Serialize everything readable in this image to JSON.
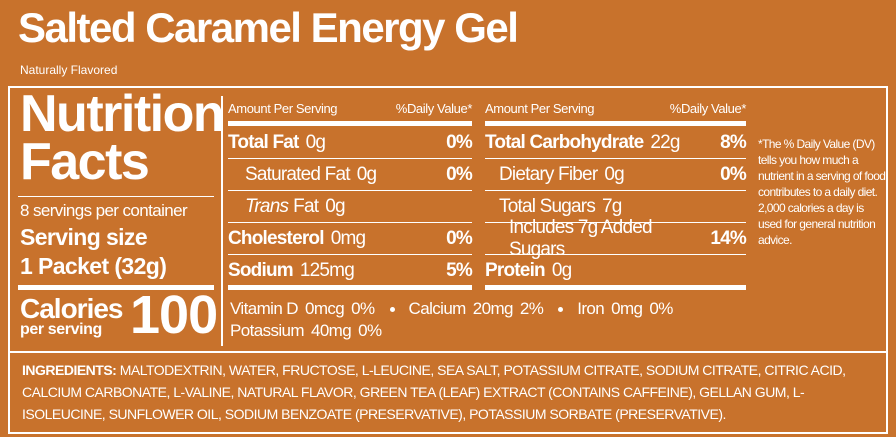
{
  "header": {
    "title": "Salted Caramel Energy Gel",
    "subtitle": "Naturally Flavored"
  },
  "facts": {
    "heading_1": "Nutrition",
    "heading_2": "Facts",
    "servings": "8 servings per container",
    "serving_size_label": "Serving size",
    "serving_size": "1 Packet (32g)",
    "calories_label": "Calories",
    "calories_sub": "per serving",
    "calories": "100"
  },
  "left_table": {
    "amount_header": "Amount Per Serving",
    "dv_header": "%Daily Value*",
    "rows": [
      {
        "name": "Total Fat",
        "amount": "0g",
        "dv": "0%"
      },
      {
        "name": "Saturated Fat",
        "amount": "0g",
        "dv": "0%"
      },
      {
        "italic": "Trans",
        "name": "Fat",
        "amount": "0g"
      },
      {
        "name": "Cholesterol",
        "amount": "0mg",
        "dv": "0%"
      },
      {
        "name": "Sodium",
        "amount": "125mg",
        "dv": "5%"
      }
    ]
  },
  "right_table": {
    "amount_header": "Amount Per Serving",
    "dv_header": "%Daily Value*",
    "rows": [
      {
        "name": "Total Carbohydrate",
        "amount": "22g",
        "dv": "8%"
      },
      {
        "name": "Dietary Fiber",
        "amount": "0g",
        "dv": "0%"
      },
      {
        "name": "Total Sugars",
        "amount": "7g"
      },
      {
        "name": "Includes 7g Added Sugars",
        "dv": "14%"
      },
      {
        "name": "Protein",
        "amount": "0g"
      }
    ]
  },
  "vitamins": [
    [
      [
        "Vitamin D",
        "0mcg",
        "0%"
      ],
      [
        "Calcium",
        "20mg",
        "2%"
      ],
      [
        "Iron",
        "0mg",
        "0%"
      ]
    ],
    [
      [
        "Potassium",
        "40mg",
        "0%"
      ]
    ]
  ],
  "footnote": "*The % Daily Value (DV) tells you how much a nutrient in a serving of food contributes to a daily diet. 2,000 calories a day is used for general nutrition advice.",
  "ingredients": {
    "label": "INGREDIENTS:",
    "text": "MALTODEXTRIN, WATER, FRUCTOSE, L-LEUCINE, SEA SALT, POTASSIUM CITRATE, SODIUM CITRATE, CITRIC ACID, CALCIUM CARBONATE, L-VALINE, NATURAL FLAVOR, GREEN TEA (LEAF) EXTRACT (CONTAINS CAFFEINE), GELLAN GUM, L-ISOLEUCINE, SUNFLOWER OIL, SODIUM BENZOATE (PRESERVATIVE), POTASSIUM SORBATE (PRESERVATIVE)."
  }
}
